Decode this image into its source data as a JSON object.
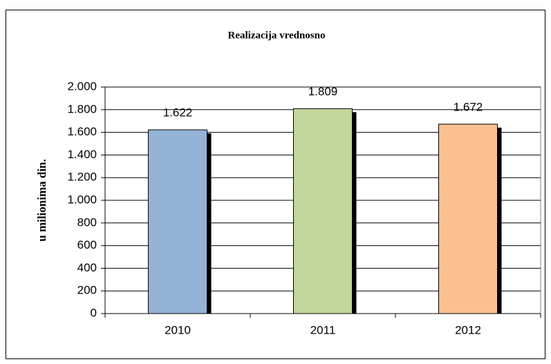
{
  "chart_data": {
    "type": "bar",
    "title": "Realizacija vrednosno",
    "y_label": "u milionima din.",
    "categories": [
      "2010",
      "2011",
      "2012"
    ],
    "values": [
      1622,
      1809,
      1672
    ],
    "value_labels": [
      "1.622",
      "1.809",
      "1.672"
    ],
    "colors": [
      "#95b3d7",
      "#c3d69b",
      "#fac090"
    ],
    "ylim": [
      0,
      2000
    ],
    "yticks": [
      0,
      200,
      400,
      600,
      800,
      {
        "value": 1000,
        "label": "1.000"
      },
      {
        "value": 1200,
        "label": "1.200"
      },
      {
        "value": 1400,
        "label": "1.400"
      },
      {
        "value": 1600,
        "label": "1.600"
      },
      {
        "value": 1800,
        "label": "1.800"
      },
      {
        "value": 2000,
        "label": "2.000"
      }
    ],
    "grid": true
  }
}
